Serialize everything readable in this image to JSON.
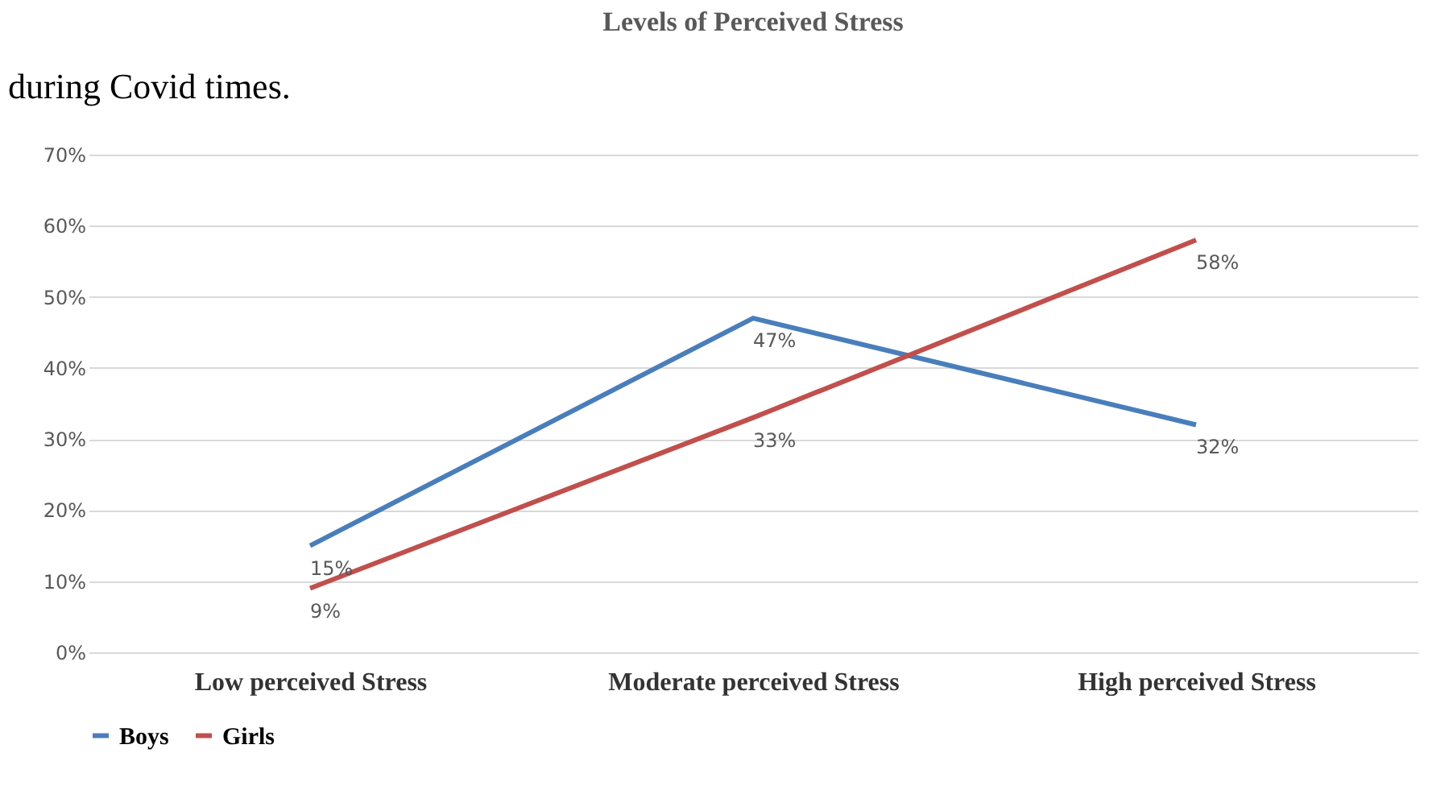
{
  "chart_data": {
    "type": "line",
    "title": "Levels of Perceived Stress",
    "annotations": [
      "during Covid times."
    ],
    "categories": [
      "Low perceived Stress",
      "Moderate perceived Stress",
      "High perceived Stress"
    ],
    "series": [
      {
        "name": "Boys",
        "color": "#4a7ebb",
        "values": [
          15,
          47,
          32
        ],
        "value_labels": [
          "15%",
          "47%",
          "32%"
        ]
      },
      {
        "name": "Girls",
        "color": "#c0504d",
        "values": [
          9,
          33,
          58
        ],
        "value_labels": [
          "9%",
          "33%",
          "58%"
        ]
      }
    ],
    "ylim": [
      0,
      70
    ],
    "yticks": [
      {
        "value": 0,
        "label": "0%"
      },
      {
        "value": 10,
        "label": "10%"
      },
      {
        "value": 20,
        "label": "20%"
      },
      {
        "value": 30,
        "label": "30%"
      },
      {
        "value": 40,
        "label": "40%"
      },
      {
        "value": 50,
        "label": "50%"
      },
      {
        "value": 60,
        "label": "60%"
      },
      {
        "value": 70,
        "label": "70%"
      }
    ],
    "grid": "y",
    "legend": "bottom",
    "marker": "none",
    "line_style": "solid"
  }
}
